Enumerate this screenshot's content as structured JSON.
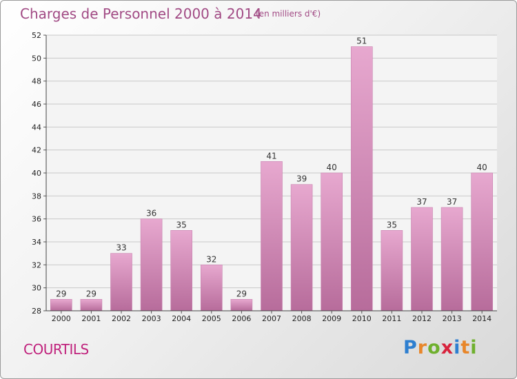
{
  "header": {
    "title": "Charges de Personnel 2000 à 2014",
    "subtitle": "(en milliers d'€)"
  },
  "footer": {
    "commune": "COURTILS",
    "logo": {
      "letters": [
        "P",
        "r",
        "o",
        "x",
        "i",
        "t",
        "i"
      ],
      "colors": [
        "#2e7fd0",
        "#e8862a",
        "#6fb02e",
        "#d8233d",
        "#2e7fd0",
        "#e8862a",
        "#6fb02e"
      ]
    }
  },
  "chart_data": {
    "type": "bar",
    "title": "Charges de Personnel 2000 à 2014",
    "subtitle": "(en milliers d'€)",
    "categories": [
      "2000",
      "2001",
      "2002",
      "2003",
      "2004",
      "2005",
      "2006",
      "2007",
      "2008",
      "2009",
      "2010",
      "2011",
      "2012",
      "2013",
      "2014"
    ],
    "values": [
      29,
      29,
      33,
      36,
      35,
      32,
      29,
      41,
      39,
      40,
      51,
      35,
      37,
      37,
      40
    ],
    "ylim": [
      28,
      52
    ],
    "yticks": [
      28,
      30,
      32,
      34,
      36,
      38,
      40,
      42,
      44,
      46,
      48,
      50,
      52
    ],
    "grid": true,
    "bar_color": "#d07aae"
  }
}
